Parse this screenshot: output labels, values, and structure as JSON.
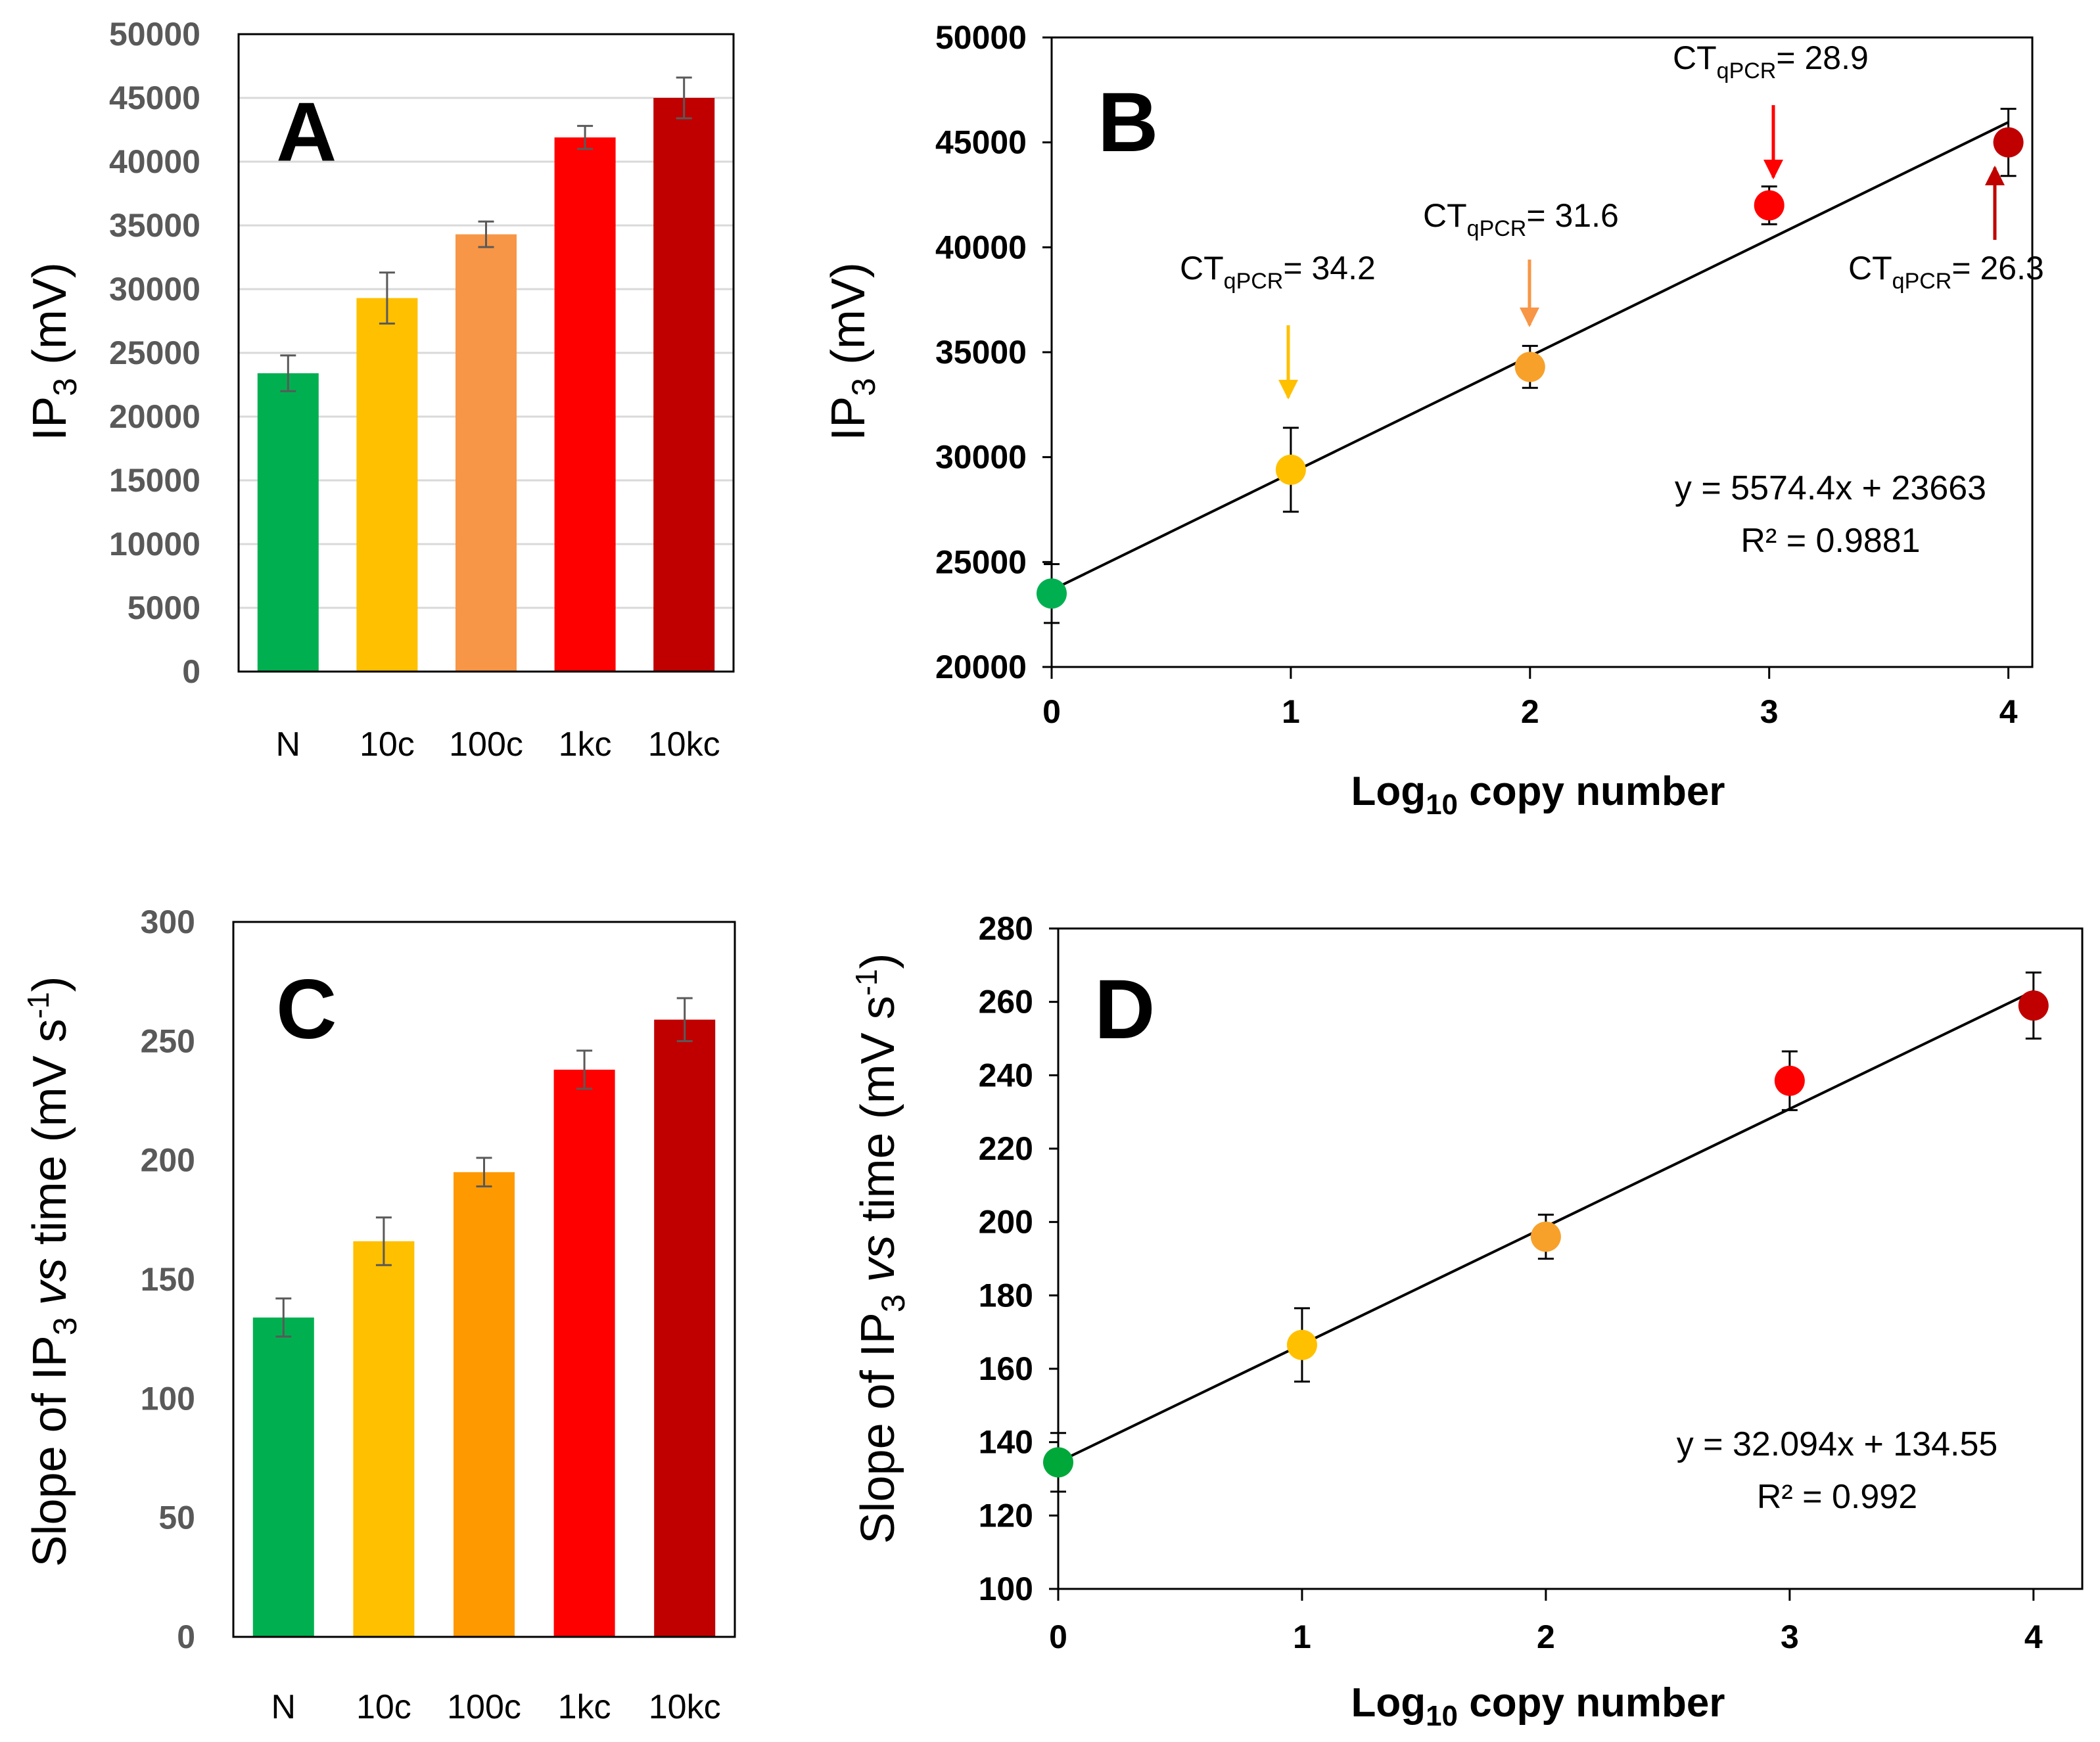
{
  "chart_data": [
    {
      "panel": "A",
      "type": "bar",
      "categories": [
        "N",
        "10c",
        "100c",
        "1kc",
        "10kc"
      ],
      "values": [
        23400,
        29300,
        34300,
        41900,
        45000
      ],
      "errors": [
        1400,
        2000,
        1000,
        900,
        1600
      ],
      "colors": [
        "#00b050",
        "#ffc000",
        "#f79646",
        "#ff0000",
        "#c00000"
      ],
      "ylabel": "IP3 (mV)",
      "ylim": [
        0,
        50000
      ],
      "yticks": [
        0,
        5000,
        10000,
        15000,
        20000,
        25000,
        30000,
        35000,
        40000,
        45000,
        50000
      ],
      "grid": true,
      "tick_color": "#595959"
    },
    {
      "panel": "B",
      "type": "scatter",
      "x": [
        0,
        1,
        2,
        3,
        4
      ],
      "y": [
        23500,
        29400,
        34300,
        42000,
        45000
      ],
      "errors": [
        1400,
        2000,
        1000,
        900,
        1600
      ],
      "colors": [
        "#00b050",
        "#ffc000",
        "#f7a12b",
        "#ff0000",
        "#c00000"
      ],
      "ylabel": "IP3 (mV)",
      "xlabel": "Log10 copy number",
      "xlim": [
        0,
        4.1
      ],
      "ylim": [
        20000,
        50000
      ],
      "xticks": [
        0,
        1,
        2,
        3,
        4
      ],
      "yticks": [
        20000,
        25000,
        30000,
        35000,
        40000,
        45000,
        50000
      ],
      "grid": false,
      "trendline": {
        "slope": 5574.4,
        "intercept": 23663,
        "equation": "y = 5574.4x + 23663",
        "r2": "R² = 0.9881"
      },
      "annotations": [
        {
          "prefix": "CT",
          "sub": "qPCR",
          "suffix": "= 34.2",
          "arrow_color": "#ffc000"
        },
        {
          "prefix": "CT",
          "sub": "qPCR",
          "suffix": "= 31.6",
          "arrow_color": "#f79646"
        },
        {
          "prefix": "CT",
          "sub": "qPCR",
          "suffix": "= 28.9",
          "arrow_color": "#ff0000"
        },
        {
          "prefix": "CT",
          "sub": "qPCR",
          "suffix": "= 26.3",
          "arrow_color": "#c00000"
        }
      ]
    },
    {
      "panel": "C",
      "type": "bar",
      "categories": [
        "N",
        "10c",
        "100c",
        "1kc",
        "10kc"
      ],
      "values": [
        134,
        166,
        195,
        238,
        259
      ],
      "errors": [
        8,
        10,
        6,
        8,
        9
      ],
      "colors": [
        "#00b050",
        "#ffc000",
        "#ff9900",
        "#ff0000",
        "#c00000"
      ],
      "ylabel": "Slope of IP3 vs time (mV s-1)",
      "ylim": [
        0,
        300
      ],
      "yticks": [
        0,
        50,
        100,
        150,
        200,
        250,
        300
      ],
      "grid": false,
      "tick_color": "#595959"
    },
    {
      "panel": "D",
      "type": "scatter",
      "x": [
        0,
        1,
        2,
        3,
        4
      ],
      "y": [
        134.5,
        166.5,
        196,
        238.5,
        259
      ],
      "errors": [
        8,
        10,
        6,
        8,
        9
      ],
      "colors": [
        "#00a83a",
        "#ffc000",
        "#f7a12b",
        "#ff0000",
        "#c00000"
      ],
      "ylabel": "Slope of IP3 vs time (mV s-1)",
      "xlabel": "Log10 copy number",
      "xlim": [
        0,
        4.2
      ],
      "ylim": [
        100,
        280
      ],
      "xticks": [
        0,
        1,
        2,
        3,
        4
      ],
      "yticks": [
        100,
        120,
        140,
        160,
        180,
        200,
        220,
        240,
        260,
        280
      ],
      "grid": false,
      "trendline": {
        "slope": 32.094,
        "intercept": 134.55,
        "equation": "y = 32.094x + 134.55",
        "r2": "R² = 0.992"
      }
    }
  ],
  "labels": {
    "ip3_main": "IP",
    "ip3_sub": "3",
    "mv_unit": " (mV)",
    "slope_prefix": "Slope of IP",
    "slope_sub": "3",
    "slope_vs": "vs",
    "slope_time": " time (mV s",
    "slope_exp": "-1",
    "slope_close": ")",
    "log_main": "Log",
    "log_sub": "10",
    "log_rest": " copy number",
    "letters": {
      "A": "A",
      "B": "B",
      "C": "C",
      "D": "D"
    }
  }
}
